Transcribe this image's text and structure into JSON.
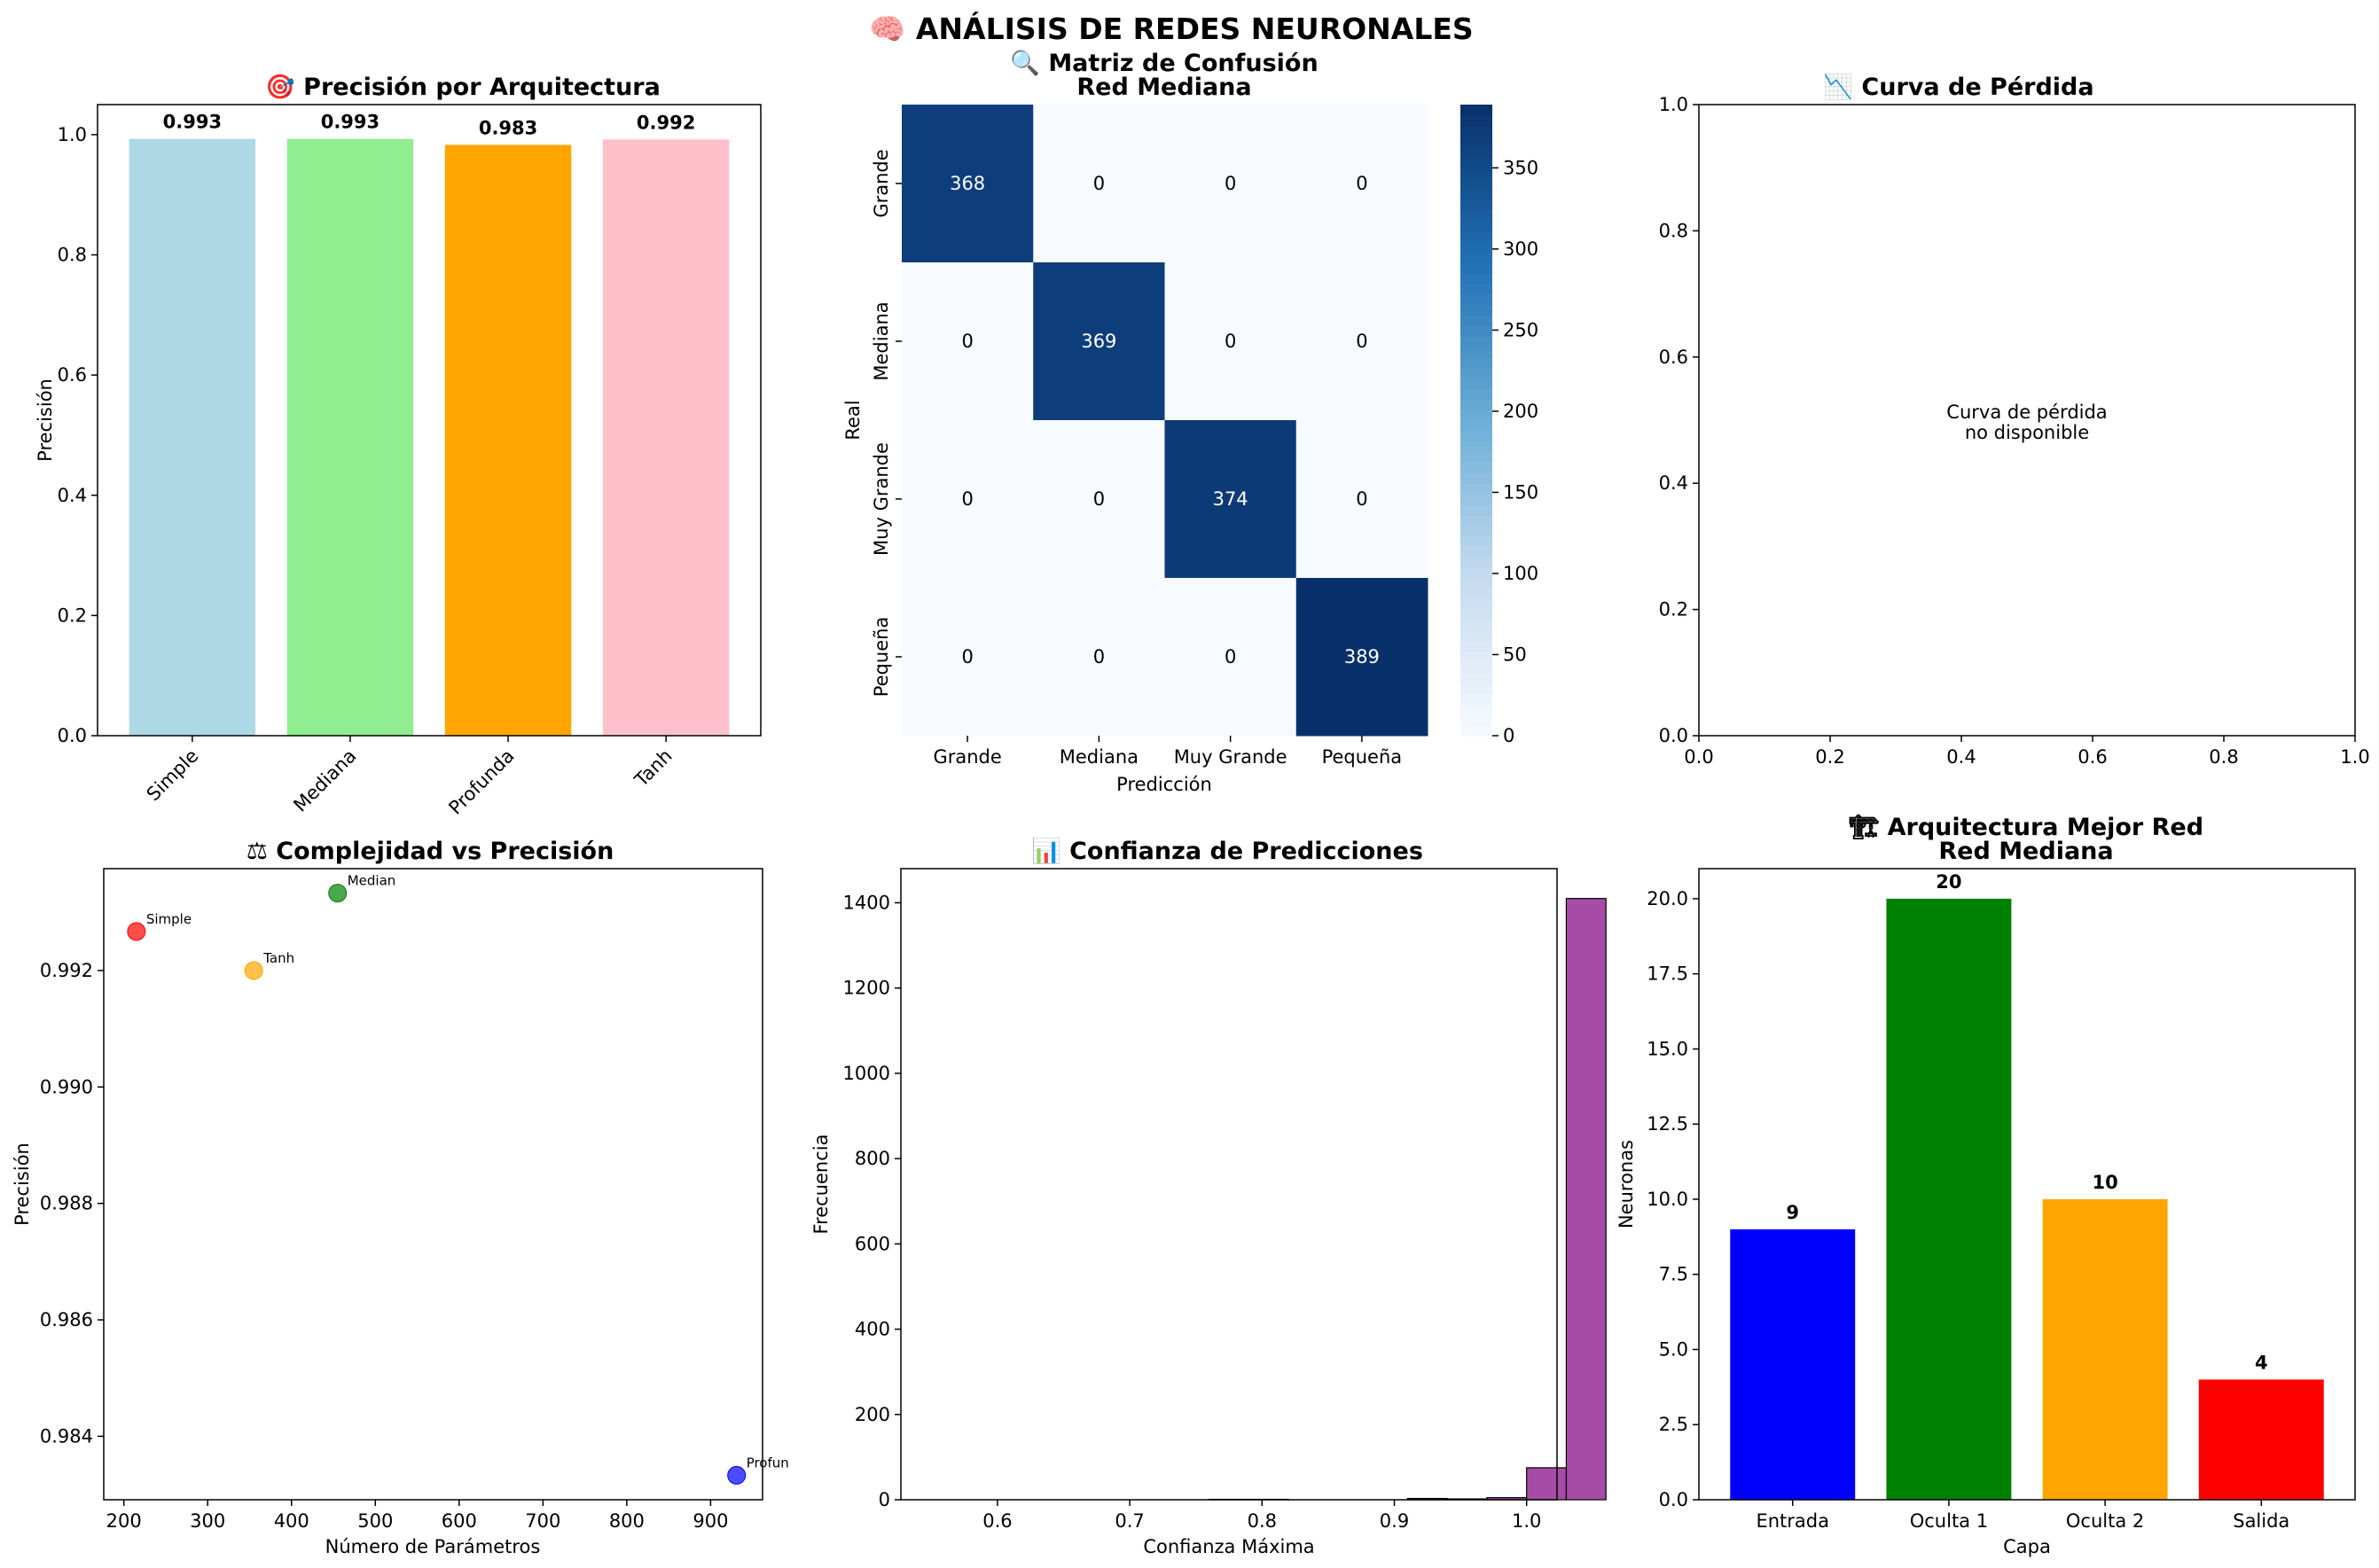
{
  "suptitle": "🧠 ANÁLISIS DE REDES NEURONALES",
  "panels": {
    "accuracy": {
      "title": "🎯 Precisión por Arquitectura",
      "ylabel": "Precisión",
      "yticks": [
        "0.0",
        "0.2",
        "0.4",
        "0.6",
        "0.8",
        "1.0"
      ]
    },
    "confusion": {
      "title1": "🔍 Matriz de Confusión",
      "title2": "Red Mediana",
      "xlabel": "Predicción",
      "ylabel": "Real",
      "cbar_ticks": [
        "0",
        "50",
        "100",
        "150",
        "200",
        "250",
        "300",
        "350"
      ]
    },
    "loss": {
      "title": "📉 Curva de Pérdida",
      "message1": "Curva de pérdida",
      "message2": "no disponible",
      "xticks": [
        "0.0",
        "0.2",
        "0.4",
        "0.6",
        "0.8",
        "1.0"
      ],
      "yticks": [
        "0.0",
        "0.2",
        "0.4",
        "0.6",
        "0.8",
        "1.0"
      ]
    },
    "complexity": {
      "title": "⚖ Complejidad vs Precisión",
      "xlabel": "Número de Parámetros",
      "ylabel": "Precisión",
      "xticks": [
        "200",
        "300",
        "400",
        "500",
        "600",
        "700",
        "800",
        "900"
      ],
      "yticks": [
        "0.984",
        "0.986",
        "0.988",
        "0.990",
        "0.992"
      ]
    },
    "confidence": {
      "title": "📊 Confianza de Predicciones",
      "xlabel": "Confianza Máxima",
      "ylabel": "Frecuencia",
      "xticks": [
        "0.6",
        "0.7",
        "0.8",
        "0.9",
        "1.0"
      ],
      "yticks": [
        "0",
        "200",
        "400",
        "600",
        "800",
        "1000",
        "1200",
        "1400"
      ]
    },
    "architecture": {
      "title1": "🏗 Arquitectura Mejor Red",
      "title2": "Red Mediana",
      "xlabel": "Capa",
      "ylabel": "Neuronas",
      "yticks": [
        "0.0",
        "2.5",
        "5.0",
        "7.5",
        "10.0",
        "12.5",
        "15.0",
        "17.5",
        "20.0"
      ]
    }
  },
  "chart_data": [
    {
      "type": "bar",
      "title": "🎯 Precisión por Arquitectura",
      "categories": [
        "Simple",
        "Mediana",
        "Profunda",
        "Tanh"
      ],
      "values": [
        0.993,
        0.993,
        0.983,
        0.992
      ],
      "value_labels": [
        "0.993",
        "0.993",
        "0.983",
        "0.992"
      ],
      "colors": [
        "#add8e6",
        "#90ee90",
        "#ffa500",
        "#ffc0cb"
      ],
      "ylabel": "Precisión",
      "ylim": [
        0,
        1.05
      ]
    },
    {
      "type": "heatmap",
      "title": "🔍 Matriz de Confusión Red Mediana",
      "row_labels": [
        "Grande",
        "Mediana",
        "Muy Grande",
        "Pequeña"
      ],
      "col_labels": [
        "Grande",
        "Mediana",
        "Muy Grande",
        "Pequeña"
      ],
      "values": [
        [
          368,
          0,
          0,
          0
        ],
        [
          0,
          369,
          0,
          0
        ],
        [
          0,
          0,
          374,
          0
        ],
        [
          0,
          0,
          0,
          389
        ]
      ],
      "vmax": 389,
      "colormap": "Blues",
      "xlabel": "Predicción",
      "ylabel": "Real"
    },
    {
      "type": "line",
      "title": "📉 Curva de Pérdida",
      "series": [],
      "xlim": [
        0,
        1
      ],
      "ylim": [
        0,
        1
      ]
    },
    {
      "type": "scatter",
      "title": "⚖ Complejidad vs Precisión",
      "points": [
        {
          "label": "Simple",
          "x": 215,
          "y": 0.99267,
          "color": "#ff0000"
        },
        {
          "label": "Median",
          "x": 455,
          "y": 0.99333,
          "color": "#008000"
        },
        {
          "label": "Tanh",
          "x": 355,
          "y": 0.992,
          "color": "#ffa500"
        },
        {
          "label": "Profun",
          "x": 931,
          "y": 0.98333,
          "color": "#0000ff"
        }
      ],
      "xlabel": "Número de Parámetros",
      "ylabel": "Precisión",
      "xlim": [
        176,
        962
      ],
      "ylim": [
        0.98291,
        0.99375
      ]
    },
    {
      "type": "bar",
      "title": "📊 Confianza de Predicciones",
      "bins_start": 0.55,
      "bin_width": 0.03,
      "counts": [
        0,
        0,
        0,
        0,
        0,
        0,
        0,
        1,
        1,
        0,
        0,
        0,
        3,
        2,
        5,
        75,
        1410
      ],
      "color": "#800080",
      "xlabel": "Confianza Máxima",
      "ylabel": "Frecuencia",
      "xlim": [
        0.527,
        1.023
      ],
      "ylim": [
        0,
        1480
      ]
    },
    {
      "type": "bar",
      "title": "🏗 Arquitectura Mejor Red Red Mediana",
      "categories": [
        "Entrada",
        "Oculta 1",
        "Oculta 2",
        "Salida"
      ],
      "values": [
        9,
        20,
        10,
        4
      ],
      "value_labels": [
        "9",
        "20",
        "10",
        "4"
      ],
      "colors": [
        "#0000ff",
        "#008000",
        "#ffa500",
        "#ff0000"
      ],
      "xlabel": "Capa",
      "ylabel": "Neuronas",
      "ylim": [
        0,
        21
      ]
    }
  ]
}
